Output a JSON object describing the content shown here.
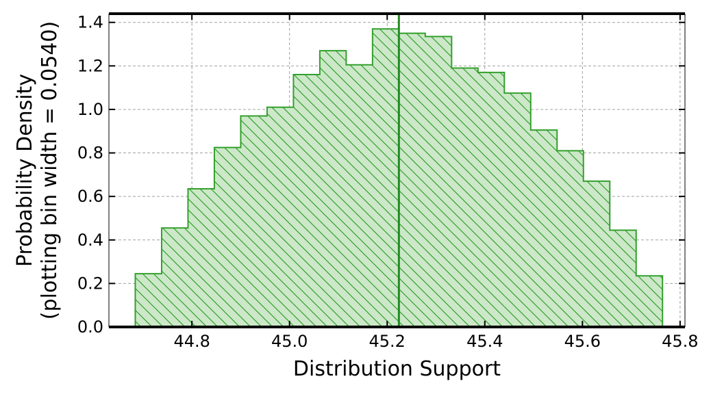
{
  "chart_data": {
    "type": "histogram",
    "xlabel": "Distribution Support",
    "ylabel_line1": "Probability Density",
    "ylabel_line2": "(plotting bin width = 0.0540)",
    "xlim": [
      44.63,
      45.81
    ],
    "ylim": [
      0.0,
      1.44
    ],
    "xticks": [
      44.8,
      45.0,
      45.2,
      45.4,
      45.6,
      45.8
    ],
    "xtick_labels": [
      "44.8",
      "45.0",
      "45.2",
      "45.4",
      "45.6",
      "45.8"
    ],
    "yticks": [
      0.0,
      0.2,
      0.4,
      0.6,
      0.8,
      1.0,
      1.2,
      1.4
    ],
    "ytick_labels": [
      "0.0",
      "0.2",
      "0.4",
      "0.6",
      "0.8",
      "1.0",
      "1.2",
      "1.4"
    ],
    "grid": true,
    "bin_width": 0.054,
    "bin_edges": [
      44.684,
      44.738,
      44.792,
      44.846,
      44.9,
      44.954,
      45.008,
      45.062,
      45.116,
      45.17,
      45.224,
      45.278,
      45.332,
      45.386,
      45.44,
      45.494,
      45.548,
      45.602,
      45.656,
      45.71,
      45.764
    ],
    "densities": [
      0.245,
      0.455,
      0.635,
      0.825,
      0.97,
      1.01,
      1.16,
      1.27,
      1.205,
      1.37,
      1.35,
      1.335,
      1.19,
      1.17,
      1.075,
      0.905,
      0.81,
      0.67,
      0.445,
      0.235
    ],
    "vline_x": 45.224,
    "colors": {
      "fill": "#cce8c9",
      "edge": "#33a02c",
      "hatch": "#33a02c",
      "vline": "#228b22",
      "grid": "#a0a0a0",
      "axis": "#000000"
    }
  }
}
